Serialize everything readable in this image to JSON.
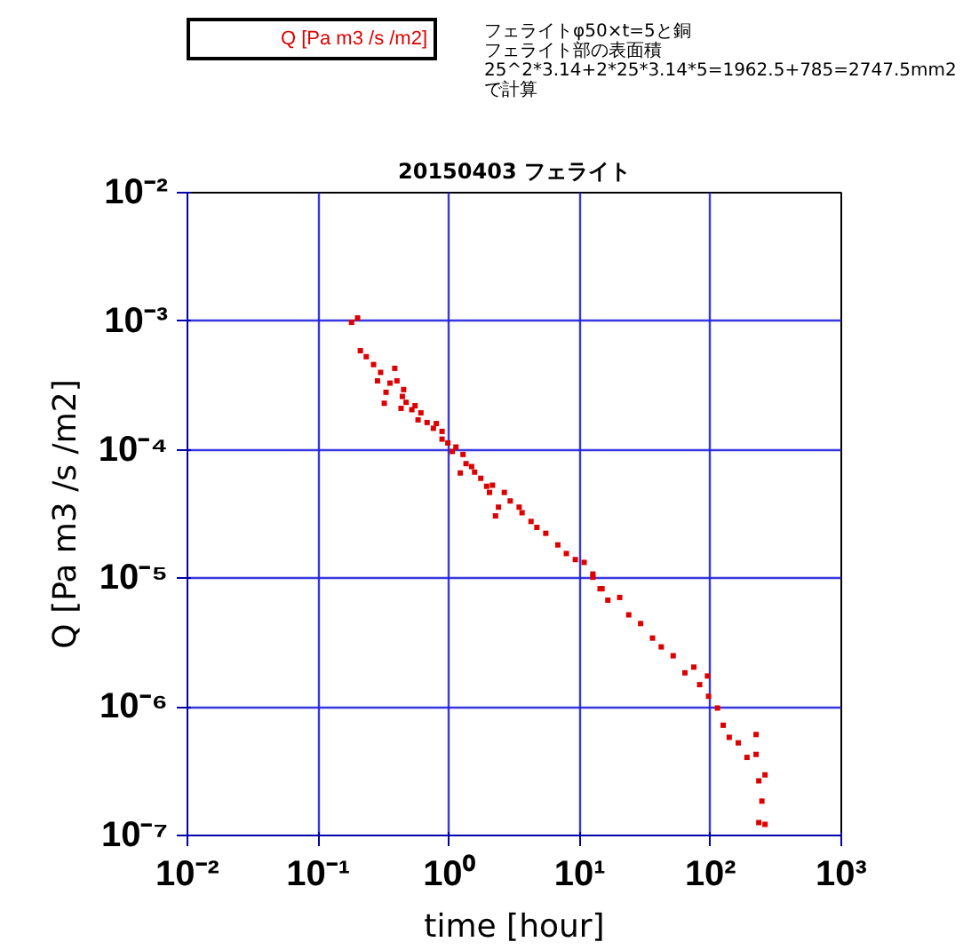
{
  "chart_data": {
    "type": "scatter",
    "title": "20150403 フェライト",
    "xlabel": "time [hour]",
    "ylabel": "Q [Pa m3 /s /m2]",
    "annotations": [
      "フェライトφ50×t=5と銅",
      "フェライト部の表面積",
      "25^2*3.14+2*25*3.14*5=1962.5+785=2747.5mm2",
      "で計算"
    ],
    "log": "xy",
    "grid": true,
    "legend": "top left",
    "marker": "square",
    "xlim": [
      0.01,
      1000
    ],
    "ylim": [
      1e-07,
      0.01
    ],
    "xticks": [
      {
        "value": 0.01,
        "label": "10⁻²"
      },
      {
        "value": 0.1,
        "label": "10⁻¹"
      },
      {
        "value": 1,
        "label": "10⁰"
      },
      {
        "value": 10,
        "label": "10¹"
      },
      {
        "value": 100,
        "label": "10²"
      },
      {
        "value": 1000,
        "label": "10³"
      }
    ],
    "yticks": [
      {
        "value": 1e-07,
        "label": "10⁻⁷"
      },
      {
        "value": 1e-06,
        "label": "10⁻⁶"
      },
      {
        "value": 1e-05,
        "label": "10⁻⁵"
      },
      {
        "value": 0.0001,
        "label": "10⁻⁴"
      },
      {
        "value": 0.001,
        "label": "10⁻³"
      },
      {
        "value": 0.01,
        "label": "10⁻²"
      }
    ],
    "series": [
      {
        "name": "Q [Pa m3 /s /m2]",
        "color": "#dd0000",
        "x": [
          0.2,
          0.18,
          0.21,
          0.233,
          0.265,
          0.3,
          0.385,
          0.284,
          0.354,
          0.4,
          0.33,
          0.32,
          0.45,
          0.44,
          0.47,
          0.52,
          0.43,
          0.55,
          0.61,
          0.58,
          0.68,
          0.8,
          0.76,
          0.885,
          0.885,
          0.98,
          1.13,
          1.06,
          1.28,
          1.35,
          1.22,
          1.49,
          1.57,
          1.75,
          1.94,
          2.15,
          2.04,
          2.39,
          2.27,
          2.65,
          2.94,
          3.44,
          3.62,
          4.24,
          4.7,
          5.5,
          6.8,
          7.9,
          9.25,
          10.8,
          12.6,
          14.3,
          12.6,
          14.8,
          16.4,
          20.2,
          23.7,
          29.2,
          36,
          42,
          51.8,
          63.7,
          74.5,
          82.6,
          94.8,
          96.6,
          113,
          125,
          139,
          163,
          190,
          223,
          223,
          234,
          261,
          247,
          261,
          234
        ],
        "values": [
          0.00106,
          0.00098,
          0.00059,
          0.00053,
          0.00046,
          0.0004,
          0.00043,
          0.000344,
          0.00033,
          0.000344,
          0.00028,
          0.00023,
          0.000294,
          0.00026,
          0.000234,
          0.000205,
          0.00021,
          0.00022,
          0.000194,
          0.000171,
          0.000163,
          0.00016,
          0.000147,
          0.000139,
          0.000121,
          0.000113,
          0.000105,
          9.7e-05,
          9.2e-05,
          7.8e-05,
          6.6e-05,
          7.4e-05,
          6.7e-05,
          6e-05,
          5.2e-05,
          5.3e-05,
          4.66e-05,
          3.58e-05,
          3.06e-05,
          4.66e-05,
          4e-05,
          3.58e-05,
          3.24e-05,
          2.77e-05,
          2.49e-05,
          2.24e-05,
          1.82e-05,
          1.56e-05,
          1.4e-05,
          1.33e-05,
          1.08e-05,
          8.3e-06,
          1.02e-05,
          8.3e-06,
          6.76e-06,
          7.1e-06,
          5.2e-06,
          4.45e-06,
          3.43e-06,
          2.93e-06,
          2.5e-06,
          1.84e-06,
          2.04e-06,
          1.49e-06,
          1.74e-06,
          1.21e-06,
          9.8e-07,
          7.2e-07,
          5.8e-07,
          5.25e-07,
          4.05e-07,
          6.1e-07,
          4.27e-07,
          2.66e-07,
          2.96e-07,
          1.85e-07,
          1.22e-07,
          1.26e-07
        ]
      }
    ]
  }
}
